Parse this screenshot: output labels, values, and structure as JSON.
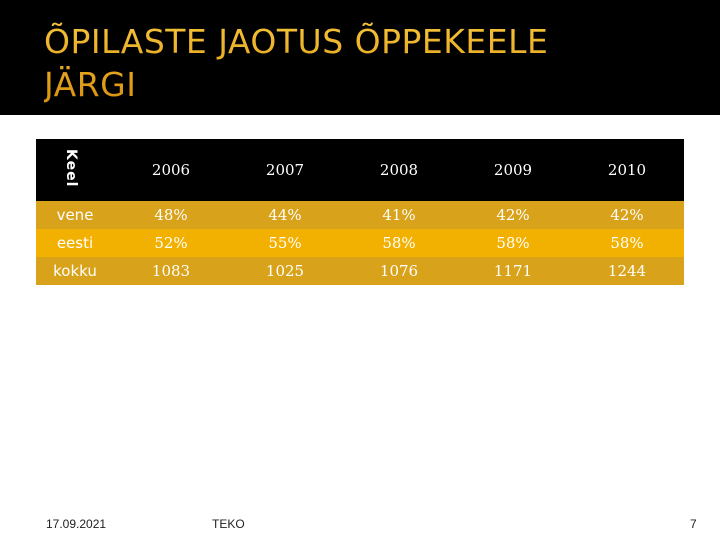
{
  "slide": {
    "title": "ÕPILASTE JAOTUS ÕPPEKEELE JÄRGI"
  },
  "table": {
    "corner_label": "Keel",
    "years": [
      "2006",
      "2007",
      "2008",
      "2009",
      "2010"
    ],
    "rows": [
      {
        "label": "vene",
        "values": [
          "48%",
          "44%",
          "41%",
          "42%",
          "42%"
        ]
      },
      {
        "label": "eesti",
        "values": [
          "52%",
          "55%",
          "58%",
          "58%",
          "58%"
        ]
      },
      {
        "label": "kokku",
        "values": [
          "1083",
          "1025",
          "1076",
          "1171",
          "1244"
        ]
      }
    ]
  },
  "footer": {
    "date": "17.09.2021",
    "org": "TEKO",
    "page": "7"
  },
  "colors": {
    "title_gold": "#e8a816",
    "header_bg": "#000000",
    "row_dark": "#d8a21a",
    "row_light": "#f2b000"
  }
}
